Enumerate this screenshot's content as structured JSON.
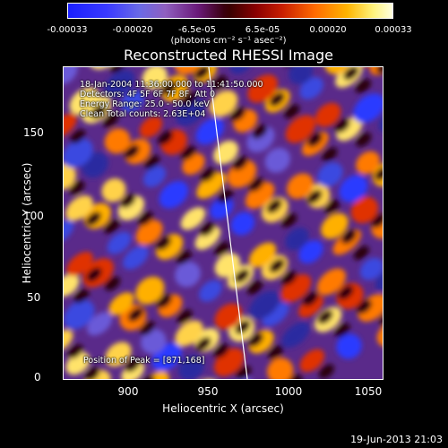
{
  "colorbar": {
    "ticks": [
      "-0.00033",
      "-0.00020",
      "-6.5e-05",
      "6.5e-05",
      "0.00020",
      "0.00033"
    ],
    "units": "(photons cm⁻² s⁻¹ asec⁻²)"
  },
  "title": "Reconstructed RHESSI Image",
  "annotation": {
    "line1": "18-Jan-2004 11:36:00.000 to 11:41:50.000",
    "line2": "Detectors: 4F 5F 6F 7F 8F, Att 0",
    "line3": "Energy Range: 25.0 - 50.0 keV",
    "line4": "Clean    Total counts: 2.63E+04",
    "peak": "Position of Peak = [871,168]"
  },
  "axes": {
    "xlabel": "Heliocentric X (arcsec)",
    "ylabel": "Heliocentric Y (arcsec)",
    "xticks": [
      "900",
      "950",
      "1000",
      "1050"
    ],
    "yticks": [
      "0",
      "50",
      "100",
      "150"
    ],
    "xlim": [
      865,
      1060
    ],
    "ylim": [
      -5,
      180
    ]
  },
  "footer": {
    "date": "19-Jun-2013 21:03"
  },
  "colors": {
    "background": "#000000",
    "text": "#ffffff",
    "limb": "#ffffff"
  }
}
